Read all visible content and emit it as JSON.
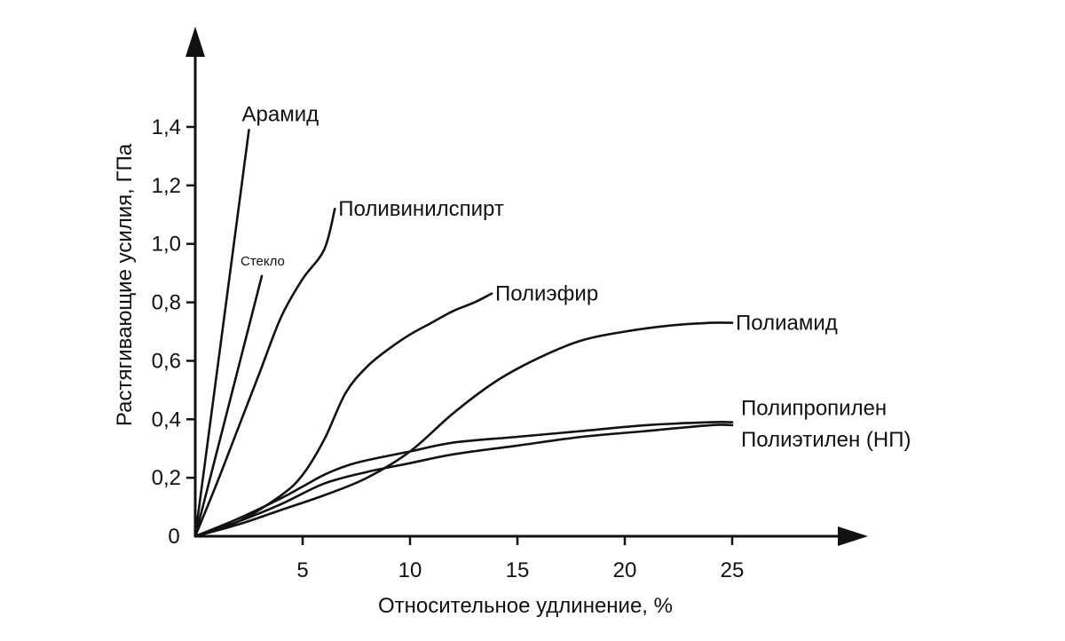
{
  "chart_data": {
    "type": "line",
    "xlabel": "Относительное удлинение, %",
    "ylabel": "Растягивающие усилия, ГПа",
    "xlim": [
      0,
      30
    ],
    "ylim": [
      0,
      1.5
    ],
    "grid": false,
    "origin_label": "0",
    "x_ticks": [
      {
        "value": 5,
        "label": "5"
      },
      {
        "value": 10,
        "label": "10"
      },
      {
        "value": 15,
        "label": "15"
      },
      {
        "value": 20,
        "label": "20"
      },
      {
        "value": 25,
        "label": "25"
      }
    ],
    "y_ticks": [
      {
        "value": 0.2,
        "label": "0,2"
      },
      {
        "value": 0.4,
        "label": "0,4"
      },
      {
        "value": 0.6,
        "label": "0,6"
      },
      {
        "value": 0.8,
        "label": "0,8"
      },
      {
        "value": 1.0,
        "label": "1,0"
      },
      {
        "value": 1.2,
        "label": "1,2"
      },
      {
        "value": 1.4,
        "label": "1,4"
      }
    ],
    "series": [
      {
        "name": "Арамид",
        "color": "#00dd00",
        "x": [
          0,
          2.5
        ],
        "y": [
          0,
          1.39
        ]
      },
      {
        "name": "Стекло",
        "color": "#111111",
        "small": true,
        "x": [
          0,
          3.1
        ],
        "y": [
          0,
          0.89
        ]
      },
      {
        "name": "Поливинилспирт",
        "color": "#111111",
        "x": [
          0,
          1,
          2,
          3,
          4,
          5,
          6,
          6.5
        ],
        "y": [
          0,
          0.18,
          0.37,
          0.56,
          0.75,
          0.88,
          0.98,
          1.12
        ]
      },
      {
        "name": "Полиэфир",
        "color": "#111111",
        "x": [
          0,
          2,
          4,
          5,
          6,
          7,
          8,
          9,
          10,
          11,
          12,
          13,
          13.8
        ],
        "y": [
          0,
          0.05,
          0.14,
          0.21,
          0.33,
          0.49,
          0.58,
          0.64,
          0.69,
          0.73,
          0.77,
          0.8,
          0.83
        ]
      },
      {
        "name": "Полиамид",
        "color": "#111111",
        "x": [
          0,
          2,
          4,
          6,
          8,
          10,
          12,
          14,
          16,
          18,
          20,
          22,
          24,
          25
        ],
        "y": [
          0,
          0.04,
          0.09,
          0.14,
          0.2,
          0.29,
          0.42,
          0.53,
          0.61,
          0.67,
          0.7,
          0.72,
          0.73,
          0.73
        ]
      },
      {
        "name": "Полипропилен",
        "color": "#ee0000",
        "x": [
          0,
          2,
          4,
          5,
          6,
          7,
          8,
          10,
          12,
          15,
          18,
          21,
          24,
          25
        ],
        "y": [
          0,
          0.06,
          0.13,
          0.17,
          0.21,
          0.24,
          0.26,
          0.29,
          0.32,
          0.34,
          0.36,
          0.38,
          0.39,
          0.39
        ]
      },
      {
        "name": "Полиэтилен (НП)",
        "color": "#ee0000",
        "x": [
          0,
          2,
          4,
          6,
          8,
          10,
          12,
          15,
          18,
          21,
          24,
          25
        ],
        "y": [
          0,
          0.05,
          0.11,
          0.18,
          0.22,
          0.25,
          0.28,
          0.31,
          0.34,
          0.36,
          0.38,
          0.38
        ]
      }
    ]
  }
}
